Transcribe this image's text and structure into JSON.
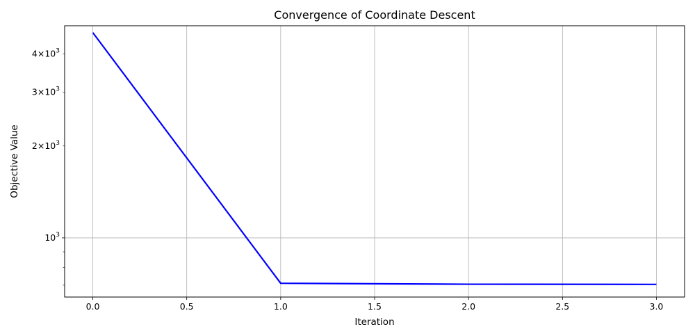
{
  "chart_data": {
    "type": "line",
    "title": "Convergence of Coordinate Descent",
    "xlabel": "Iteration",
    "ylabel": "Objective Value",
    "x": [
      0,
      1,
      2,
      3
    ],
    "series": [
      {
        "values": [
          4700,
          710,
          705,
          704
        ],
        "color": "#0000ff"
      }
    ],
    "xlim": [
      -0.15,
      3.15
    ],
    "ylim": [
      640,
      4950
    ],
    "yscale": "log",
    "grid": true,
    "x_ticks": [
      {
        "value": 0,
        "label": "0.0"
      },
      {
        "value": 0.5,
        "label": "0.5"
      },
      {
        "value": 1,
        "label": "1.0"
      },
      {
        "value": 1.5,
        "label": "1.5"
      },
      {
        "value": 2,
        "label": "2.0"
      },
      {
        "value": 2.5,
        "label": "2.5"
      },
      {
        "value": 3,
        "label": "3.0"
      }
    ],
    "y_major_ticks": [
      {
        "value": 1000,
        "base": "10",
        "exp": "3"
      }
    ],
    "y_minor_labeled_ticks": [
      {
        "value": 2000,
        "mult": "2",
        "base": "10",
        "exp": "3"
      },
      {
        "value": 3000,
        "mult": "3",
        "base": "10",
        "exp": "3"
      },
      {
        "value": 4000,
        "mult": "4",
        "base": "10",
        "exp": "3"
      }
    ],
    "y_minor_unlabeled_ticks": [
      700,
      800,
      900
    ]
  }
}
